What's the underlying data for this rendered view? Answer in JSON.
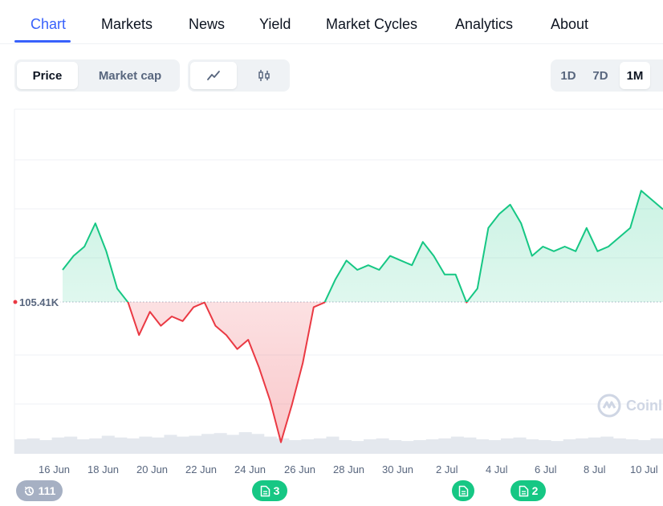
{
  "tabs": [
    {
      "label": "Chart",
      "active": true
    },
    {
      "label": "Markets",
      "active": false
    },
    {
      "label": "News",
      "active": false
    },
    {
      "label": "Yield",
      "active": false
    },
    {
      "label": "Market Cycles",
      "active": false
    },
    {
      "label": "Analytics",
      "active": false
    },
    {
      "label": "About",
      "active": false
    }
  ],
  "metric_toggle": {
    "price_label": "Price",
    "market_cap_label": "Market cap",
    "selected": "Price"
  },
  "chart_style_toggle": {
    "line_icon": "line-chart-icon",
    "candle_icon": "candlestick-icon",
    "selected": "line"
  },
  "range_toggle": {
    "options": [
      "1D",
      "7D",
      "1M"
    ],
    "selected": "1M"
  },
  "chart": {
    "baseline_label": "105.41K",
    "x_labels": [
      "16 Jun",
      "18 Jun",
      "20 Jun",
      "22 Jun",
      "24 Jun",
      "26 Jun",
      "28 Jun",
      "30 Jun",
      "2 Jul",
      "4 Jul",
      "6 Jul",
      "8 Jul",
      "10 Jul"
    ],
    "watermark": "Coinl",
    "colors": {
      "up": "#16c784",
      "down": "#ea3943",
      "grid": "#eff2f5",
      "volume": "#e4e8ee"
    }
  },
  "chart_data": {
    "type": "area",
    "baseline": 105.41,
    "baseline_unit": "K",
    "x_labels": [
      "16 Jun",
      "18 Jun",
      "20 Jun",
      "22 Jun",
      "24 Jun",
      "26 Jun",
      "28 Jun",
      "30 Jun",
      "2 Jul",
      "4 Jul",
      "6 Jul",
      "8 Jul",
      "10 Jul"
    ],
    "series": [
      {
        "x": [
          "15 Jun",
          "15 Jun",
          "16 Jun",
          "16 Jun",
          "17 Jun",
          "17 Jun",
          "17 Jun",
          "18 Jun",
          "18 Jun",
          "19 Jun",
          "19 Jun",
          "20 Jun",
          "20 Jun",
          "20 Jun",
          "21 Jun",
          "21 Jun",
          "22 Jun",
          "22 Jun",
          "23 Jun",
          "23 Jun",
          "23 Jun",
          "24 Jun",
          "24 Jun",
          "24 Jun",
          "25 Jun",
          "25 Jun",
          "26 Jun",
          "27 Jun",
          "27 Jun",
          "28 Jun",
          "28 Jun",
          "29 Jun",
          "29 Jun",
          "30 Jun",
          "30 Jun",
          "1 Jul",
          "1 Jul",
          "2 Jul",
          "2 Jul",
          "3 Jul",
          "3 Jul",
          "4 Jul",
          "4 Jul",
          "5 Jul",
          "5 Jul",
          "6 Jul",
          "6 Jul",
          "7 Jul",
          "7 Jul",
          "8 Jul",
          "8 Jul",
          "9 Jul",
          "9 Jul",
          "10 Jul",
          "10 Jul",
          "10 Jul"
        ],
        "values": [
          106.1,
          106.4,
          106.6,
          107.1,
          106.5,
          105.7,
          105.4,
          104.7,
          105.2,
          104.9,
          105.1,
          105.0,
          105.3,
          105.4,
          104.9,
          104.7,
          104.4,
          104.6,
          104.0,
          103.3,
          102.4,
          103.2,
          104.1,
          105.3,
          105.4,
          105.9,
          106.3,
          106.1,
          106.2,
          106.1,
          106.4,
          106.3,
          106.2,
          106.7,
          106.4,
          106.0,
          106.0,
          105.4,
          105.7,
          107.0,
          107.3,
          107.5,
          107.1,
          106.4,
          106.6,
          106.5,
          106.6,
          106.5,
          107.0,
          106.5,
          106.6,
          106.8,
          107.0,
          107.8,
          107.6,
          107.4
        ]
      }
    ],
    "volume_relative": [
      0.55,
      0.6,
      0.5,
      0.65,
      0.7,
      0.55,
      0.6,
      0.75,
      0.65,
      0.6,
      0.7,
      0.65,
      0.8,
      0.7,
      0.75,
      0.85,
      0.9,
      0.8,
      0.95,
      0.85,
      0.7,
      0.6,
      0.5,
      0.55,
      0.6,
      0.7,
      0.5,
      0.45,
      0.55,
      0.6,
      0.5,
      0.45,
      0.5,
      0.55,
      0.6,
      0.7,
      0.65,
      0.55,
      0.5,
      0.6,
      0.65,
      0.55,
      0.5,
      0.45,
      0.55,
      0.6,
      0.65,
      0.7,
      0.6,
      0.55,
      0.5,
      0.6
    ],
    "grid": true
  },
  "markers": [
    {
      "icon": "history-icon",
      "label": "111",
      "style": "grey"
    },
    {
      "icon": "document-icon",
      "label": "3",
      "style": "green"
    },
    {
      "icon": "document-icon",
      "label": "",
      "style": "green"
    },
    {
      "icon": "document-icon",
      "label": "2",
      "style": "green"
    }
  ]
}
